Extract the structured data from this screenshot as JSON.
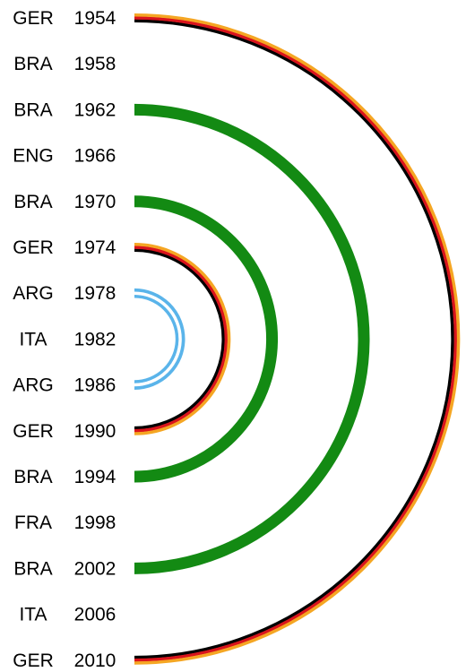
{
  "rows": [
    {
      "team": "GER",
      "year": "1954"
    },
    {
      "team": "BRA",
      "year": "1958"
    },
    {
      "team": "BRA",
      "year": "1962"
    },
    {
      "team": "ENG",
      "year": "1966"
    },
    {
      "team": "BRA",
      "year": "1970"
    },
    {
      "team": "GER",
      "year": "1974"
    },
    {
      "team": "ARG",
      "year": "1978"
    },
    {
      "team": "ITA",
      "year": "1982"
    },
    {
      "team": "ARG",
      "year": "1986"
    },
    {
      "team": "GER",
      "year": "1990"
    },
    {
      "team": "BRA",
      "year": "1994"
    },
    {
      "team": "FRA",
      "year": "1998"
    },
    {
      "team": "BRA",
      "year": "2002"
    },
    {
      "team": "ITA",
      "year": "2006"
    },
    {
      "team": "GER",
      "year": "2010"
    }
  ],
  "arcs": [
    {
      "from": 0,
      "to": 14,
      "style": "germany"
    },
    {
      "from": 2,
      "to": 12,
      "style": "brazil"
    },
    {
      "from": 4,
      "to": 10,
      "style": "brazil"
    },
    {
      "from": 5,
      "to": 9,
      "style": "germany"
    },
    {
      "from": 6,
      "to": 8,
      "style": "argentina"
    }
  ],
  "colors": {
    "brazil": "#138a13",
    "germany_black": "#000000",
    "germany_red": "#d9141c",
    "germany_gold": "#f5a623",
    "argentina": "#5ab4ea"
  }
}
